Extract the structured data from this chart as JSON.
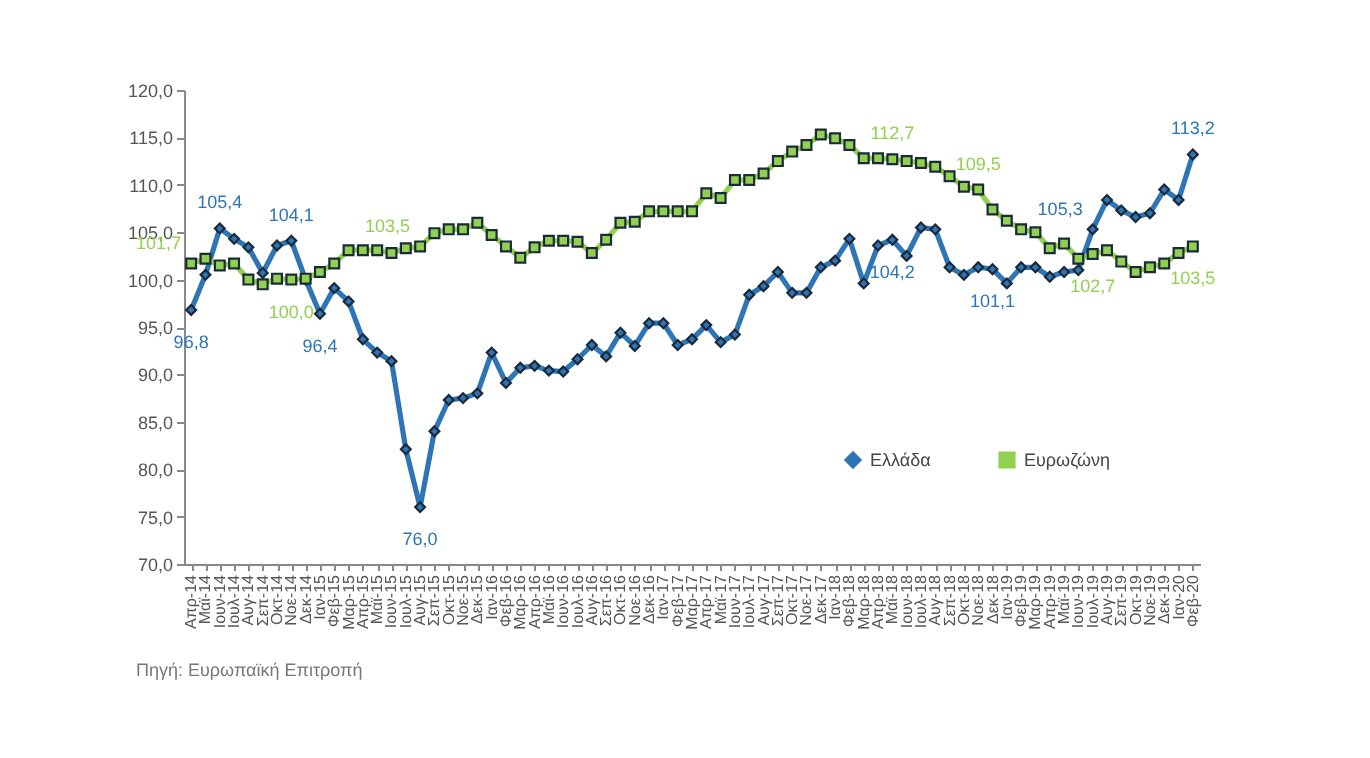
{
  "chart_data": {
    "type": "line",
    "categories": [
      "Απρ-14",
      "Μαϊ-14",
      "Ιουν-14",
      "Ιουλ-14",
      "Αυγ-14",
      "Σεπ-14",
      "Οκτ-14",
      "Νοε-14",
      "Δεκ-14",
      "Ιαν-15",
      "Φεβ-15",
      "Μαρ-15",
      "Απρ-15",
      "Μαϊ-15",
      "Ιουν-15",
      "Ιουλ-15",
      "Αυγ-15",
      "Σεπ-15",
      "Οκτ-15",
      "Νοε-15",
      "Δεκ-15",
      "Ιαν-16",
      "Φεβ-16",
      "Μαρ-16",
      "Απρ-16",
      "Μαϊ-16",
      "Ιουν-16",
      "Ιουλ-16",
      "Αυγ-16",
      "Σεπ-16",
      "Οκτ-16",
      "Νοε-16",
      "Δεκ-16",
      "Ιαν-17",
      "Φεβ-17",
      "Μαρ-17",
      "Απρ-17",
      "Μαϊ-17",
      "Ιουν-17",
      "Ιουλ-17",
      "Αυγ-17",
      "Σεπ-17",
      "Οκτ-17",
      "Νοε-17",
      "Δεκ-17",
      "Ιαν-18",
      "Φεβ-18",
      "Μαρ-18",
      "Απρ-18",
      "Μαϊ-18",
      "Ιουν-18",
      "Ιουλ-18",
      "Αυγ-18",
      "Σεπ-18",
      "Οκτ-18",
      "Νοε-18",
      "Δεκ-18",
      "Ιαν-19",
      "Φεβ-19",
      "Μαρ-19",
      "Απρ-19",
      "Μαϊ-19",
      "Ιουν-19",
      "Ιουλ-19",
      "Αυγ-19",
      "Σεπ-19",
      "Οκτ-19",
      "Νοε-19",
      "Δεκ-19",
      "Ιαν-20",
      "Φεβ-20"
    ],
    "series": [
      {
        "name": "Ελλάδα",
        "color": "#2e75b6",
        "marker": "diamond",
        "values": [
          96.8,
          100.5,
          105.4,
          104.3,
          103.4,
          100.7,
          103.6,
          104.1,
          100.0,
          96.4,
          99.1,
          97.7,
          93.7,
          92.3,
          91.4,
          82.1,
          76.0,
          84.0,
          87.3,
          87.5,
          88.0,
          92.3,
          89.1,
          90.7,
          90.9,
          90.4,
          90.3,
          91.6,
          93.1,
          91.9,
          94.4,
          93.0,
          95.4,
          95.4,
          93.1,
          93.7,
          95.2,
          93.4,
          94.2,
          98.4,
          99.3,
          100.8,
          98.6,
          98.6,
          101.3,
          102.0,
          104.3,
          99.6,
          103.6,
          104.2,
          102.5,
          105.5,
          105.3,
          101.3,
          100.5,
          101.3,
          101.1,
          99.6,
          101.3,
          101.3,
          100.3,
          100.8,
          101.0,
          105.3,
          108.4,
          107.3,
          106.6,
          107.0,
          109.5,
          108.4,
          113.2
        ],
        "value_labels": [
          "96,8",
          null,
          "105,4",
          null,
          null,
          null,
          null,
          "104,1",
          null,
          "96,4",
          null,
          null,
          null,
          null,
          null,
          null,
          "76,0",
          null,
          null,
          null,
          null,
          null,
          null,
          null,
          null,
          null,
          null,
          null,
          null,
          null,
          null,
          null,
          null,
          null,
          null,
          null,
          null,
          null,
          null,
          null,
          null,
          null,
          null,
          null,
          null,
          null,
          null,
          null,
          null,
          "104,2",
          null,
          null,
          null,
          null,
          null,
          null,
          "101,1",
          null,
          null,
          null,
          null,
          null,
          null,
          "105,3",
          null,
          null,
          null,
          null,
          null,
          null,
          "113,2"
        ]
      },
      {
        "name": "Ευρωζώνη",
        "color": "#92d050",
        "marker": "square",
        "values": [
          101.7,
          102.2,
          101.5,
          101.7,
          100.0,
          99.5,
          100.1,
          100.0,
          100.1,
          100.8,
          101.7,
          103.1,
          103.1,
          103.1,
          102.8,
          103.3,
          103.5,
          104.9,
          105.3,
          105.3,
          106.0,
          104.7,
          103.5,
          102.3,
          103.4,
          104.1,
          104.1,
          104.0,
          102.8,
          104.2,
          106.0,
          106.1,
          107.2,
          107.2,
          107.2,
          107.2,
          109.1,
          108.6,
          110.5,
          110.5,
          111.2,
          112.5,
          113.5,
          114.2,
          115.3,
          114.9,
          114.2,
          112.8,
          112.8,
          112.7,
          112.5,
          112.3,
          111.9,
          110.9,
          109.8,
          109.5,
          107.4,
          106.2,
          105.3,
          105.0,
          103.3,
          103.8,
          102.2,
          102.7,
          103.1,
          101.9,
          100.8,
          101.3,
          101.7,
          102.8,
          103.5
        ],
        "value_labels": [
          "101,7",
          null,
          null,
          null,
          null,
          null,
          null,
          "100,0",
          null,
          null,
          null,
          null,
          null,
          null,
          null,
          null,
          "103,5",
          null,
          null,
          null,
          null,
          null,
          null,
          null,
          null,
          null,
          null,
          null,
          null,
          null,
          null,
          null,
          null,
          null,
          null,
          null,
          null,
          null,
          null,
          null,
          null,
          null,
          null,
          null,
          null,
          null,
          null,
          null,
          null,
          "112,7",
          null,
          null,
          null,
          null,
          null,
          "109,5",
          null,
          null,
          null,
          null,
          null,
          null,
          null,
          "102,7",
          null,
          null,
          null,
          null,
          null,
          null,
          "103,5"
        ]
      }
    ],
    "ylim": [
      70,
      120
    ],
    "yticks": [
      {
        "value": 70,
        "label": "70,0"
      },
      {
        "value": 75,
        "label": "75,0"
      },
      {
        "value": 80,
        "label": "80,0"
      },
      {
        "value": 85,
        "label": "85,0"
      },
      {
        "value": 90,
        "label": "90,0"
      },
      {
        "value": 95,
        "label": "95,0"
      },
      {
        "value": 100,
        "label": "100,0"
      },
      {
        "value": 105,
        "label": "105,0"
      },
      {
        "value": 110,
        "label": "110,0"
      },
      {
        "value": 115,
        "label": "115,0"
      },
      {
        "value": 120,
        "label": "120,0"
      }
    ],
    "legend": "bottom right",
    "line_style": "solid",
    "grid": false,
    "annotations": [
      "Πηγή: Ευρωπαϊκή Επιτροπή"
    ]
  }
}
